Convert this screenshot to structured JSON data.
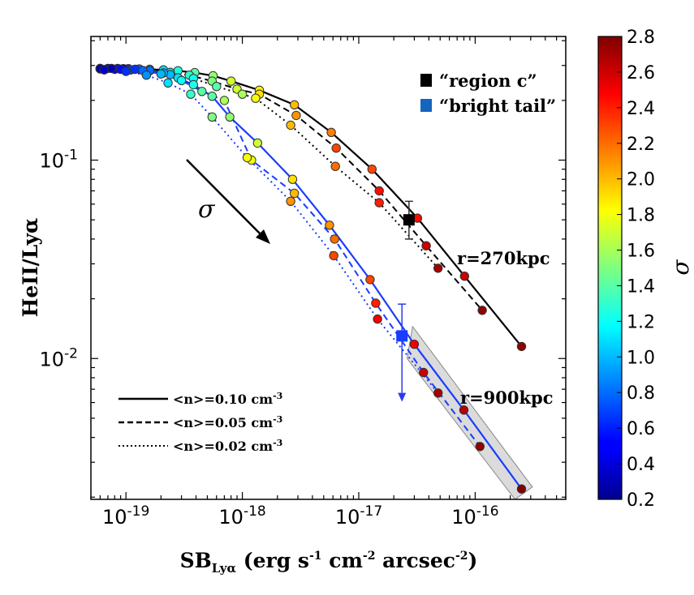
{
  "chart_data": {
    "type": "scatter",
    "title": "",
    "xlabel": "SB_Lyα (erg s⁻¹ cm⁻² arcsec⁻²)",
    "xlabel_main": "SB",
    "xlabel_sub": "Lyα",
    "xlabel_rest_1": " (erg s",
    "xlabel_sup_1": "-1",
    "xlabel_rest_2": " cm",
    "xlabel_sup_2": "-2",
    "xlabel_rest_3": " arcsec",
    "xlabel_sup_3": "-2",
    "xlabel_rest_4": ")",
    "ylabel": "HeII/Lyα",
    "xscale": "log",
    "yscale": "log",
    "xlim": [
      5e-20,
      6e-16
    ],
    "ylim": [
      0.00195,
      0.42
    ],
    "xticks": [
      {
        "value": 1e-19,
        "base": "10",
        "exp": "-19"
      },
      {
        "value": 1e-18,
        "base": "10",
        "exp": "-18"
      },
      {
        "value": 1e-17,
        "base": "10",
        "exp": "-17"
      },
      {
        "value": 1e-16,
        "base": "10",
        "exp": "-16"
      }
    ],
    "yticks": [
      {
        "value": 0.1,
        "base": "10",
        "exp": "-1"
      },
      {
        "value": 0.01,
        "base": "10",
        "exp": "-2"
      }
    ],
    "colorbar": {
      "label": "σ",
      "min": 0.2,
      "max": 2.8,
      "tick_labels": [
        "0.2",
        "0.4",
        "0.6",
        "0.8",
        "1.0",
        "1.2",
        "1.4",
        "1.6",
        "1.8",
        "2.0",
        "2.2",
        "2.4",
        "2.6",
        "2.8"
      ]
    },
    "series": [
      {
        "name": "r=270kpc, <n>=0.10 cm-3",
        "group": "r270",
        "color": "#000000",
        "dash": "solid",
        "sb": [
          6e-20,
          7e-20,
          8.5e-20,
          1.05e-19,
          1.3e-19,
          1.6e-19,
          2.1e-19,
          2.8e-19,
          3.9e-19,
          5.6e-19,
          8e-19,
          1.4e-18,
          2.8e-18,
          5.8e-18,
          1.3e-17,
          3.2e-17,
          8.1e-17,
          2.5e-16
        ],
        "ratio": [
          0.29,
          0.29,
          0.29,
          0.289,
          0.288,
          0.287,
          0.285,
          0.282,
          0.276,
          0.266,
          0.25,
          0.225,
          0.19,
          0.138,
          0.09,
          0.051,
          0.026,
          0.0115
        ],
        "sigma": [
          0.2,
          0.35,
          0.5,
          0.65,
          0.8,
          0.95,
          1.1,
          1.25,
          1.4,
          1.55,
          1.7,
          1.85,
          2.0,
          2.15,
          2.3,
          2.45,
          2.6,
          2.75
        ]
      },
      {
        "name": "r=270kpc, <n>=0.05 cm-3",
        "group": "r270",
        "color": "#000000",
        "dash": "dashed",
        "sb": [
          6e-20,
          8e-20,
          1.1e-19,
          1.6e-19,
          2.4e-19,
          3.5e-19,
          5.5e-19,
          9e-19,
          1.4e-18,
          2.9e-18,
          6.4e-18,
          1.5e-17,
          3.8e-17,
          1.15e-16
        ],
        "ratio": [
          0.288,
          0.287,
          0.285,
          0.282,
          0.277,
          0.268,
          0.25,
          0.228,
          0.215,
          0.168,
          0.115,
          0.07,
          0.037,
          0.0175
        ],
        "sigma": [
          0.3,
          0.5,
          0.7,
          0.9,
          1.1,
          1.3,
          1.5,
          1.7,
          1.9,
          2.1,
          2.3,
          2.45,
          2.6,
          2.75
        ]
      },
      {
        "name": "r=270kpc, <n>=0.02 cm-3",
        "group": "r270",
        "color": "#000000",
        "dash": "dotted",
        "sb": [
          6.5e-20,
          1e-19,
          1.5e-19,
          2.4e-19,
          3.8e-19,
          6e-19,
          1e-18,
          1.3e-18,
          2.6e-18,
          6.3e-18,
          1.5e-17,
          4.8e-17
        ],
        "ratio": [
          0.286,
          0.283,
          0.278,
          0.27,
          0.258,
          0.235,
          0.215,
          0.205,
          0.15,
          0.093,
          0.061,
          0.0285
        ],
        "sigma": [
          0.4,
          0.6,
          0.8,
          1.0,
          1.2,
          1.4,
          1.6,
          1.8,
          2.0,
          2.2,
          2.4,
          2.7
        ]
      },
      {
        "name": "r=900kpc, <n>=0.10 cm-3",
        "group": "r900",
        "color": "#1a3cff",
        "dash": "solid",
        "sb": [
          6e-20,
          7.5e-20,
          9.5e-20,
          1.2e-19,
          1.6e-19,
          2.1e-19,
          2.8e-19,
          3.8e-19,
          5.5e-19,
          7.8e-19,
          1.35e-18,
          2.7e-18,
          5.6e-18,
          1.25e-17,
          3e-17,
          8e-17,
          2.5e-16
        ],
        "ratio": [
          0.29,
          0.29,
          0.289,
          0.287,
          0.283,
          0.275,
          0.26,
          0.24,
          0.21,
          0.165,
          0.122,
          0.08,
          0.047,
          0.025,
          0.0118,
          0.0055,
          0.0022
        ],
        "sigma": [
          0.2,
          0.35,
          0.5,
          0.65,
          0.8,
          0.95,
          1.1,
          1.25,
          1.4,
          1.55,
          1.7,
          1.9,
          2.1,
          2.3,
          2.5,
          2.65,
          2.8
        ]
      },
      {
        "name": "r=900kpc, <n>=0.05 cm-3",
        "group": "r900",
        "color": "#1a3cff",
        "dash": "dashed",
        "sb": [
          6e-20,
          9e-20,
          1.4e-19,
          2e-19,
          3e-19,
          4.5e-19,
          7e-19,
          1.2e-18,
          2.8e-18,
          6.2e-18,
          1.4e-17,
          3.6e-17,
          1.1e-16
        ],
        "ratio": [
          0.289,
          0.287,
          0.283,
          0.272,
          0.252,
          0.222,
          0.2,
          0.1,
          0.068,
          0.04,
          0.019,
          0.0085,
          0.0036
        ],
        "sigma": [
          0.3,
          0.55,
          0.8,
          1.0,
          1.2,
          1.4,
          1.6,
          1.8,
          2.0,
          2.2,
          2.4,
          2.6,
          2.75
        ]
      },
      {
        "name": "r=900kpc, <n>=0.02 cm-3",
        "group": "r900",
        "color": "#1a3cff",
        "dash": "dotted",
        "sb": [
          6.5e-20,
          1e-19,
          1.5e-19,
          2.3e-19,
          3.6e-19,
          5.5e-19,
          1.1e-18,
          2.6e-18,
          6.1e-18,
          1.45e-17,
          4.8e-17
        ],
        "ratio": [
          0.285,
          0.28,
          0.268,
          0.245,
          0.215,
          0.165,
          0.103,
          0.062,
          0.033,
          0.0158,
          0.0067
        ],
        "sigma": [
          0.4,
          0.65,
          0.9,
          1.1,
          1.3,
          1.5,
          1.8,
          2.1,
          2.3,
          2.5,
          2.7
        ]
      }
    ],
    "observations": [
      {
        "label": "“region c”",
        "color": "#000000",
        "sb": 2.7e-17,
        "ratio": 0.05,
        "err_low": 0.04,
        "err_high": 0.062,
        "upper_limit": false
      },
      {
        "label": "“bright tail”",
        "color": "#1565c0",
        "sb": 2.35e-17,
        "ratio": 0.013,
        "err_low": 0.0078,
        "err_high": 0.0188,
        "upper_limit": true
      }
    ],
    "annotations": [
      {
        "text": "r=270kpc",
        "color": "#000000"
      },
      {
        "text": "r=900kpc",
        "color": "#2e4a7a"
      },
      {
        "text": "σ",
        "color": "#000000"
      }
    ],
    "line_legend": [
      {
        "label_main": "<n>=0.10 cm",
        "label_sup": "-3",
        "dash": "solid"
      },
      {
        "label_main": "<n>=0.05 cm",
        "label_sup": "-3",
        "dash": "dashed"
      },
      {
        "label_main": "<n>=0.02 cm",
        "label_sup": "-3",
        "dash": "dotted"
      }
    ],
    "shaded_region": {
      "description": "grey band over the extrapolated r=900kpc tail",
      "color": "#cfcfcf",
      "corners": [
        [
          2.9e-17,
          0.0145
        ],
        [
          3.1e-16,
          0.00225
        ],
        [
          2.2e-16,
          0.00195
        ],
        [
          2.6e-17,
          0.01
        ]
      ]
    }
  }
}
